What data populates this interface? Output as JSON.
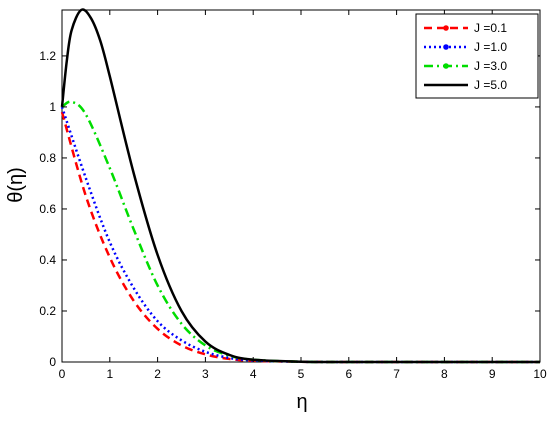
{
  "chart_data": {
    "type": "line",
    "title": "",
    "xlabel": "η",
    "ylabel": "θ(η)",
    "xlim": [
      0,
      10
    ],
    "ylim": [
      0,
      1.38
    ],
    "xticks": [
      "0",
      "1",
      "2",
      "3",
      "4",
      "5",
      "6",
      "7",
      "8",
      "9",
      "10"
    ],
    "yticks": [
      "0",
      "0.2",
      "0.4",
      "0.6",
      "0.8",
      "1",
      "1.2"
    ],
    "grid": false,
    "legend_position": "top-right",
    "series": [
      {
        "name": "J =0.1",
        "color": "#ff0000",
        "style": "dashed",
        "x": [
          0,
          0.5,
          1,
          1.5,
          2,
          2.5,
          3,
          3.5,
          4,
          5,
          6,
          7,
          8,
          9,
          10
        ],
        "y": [
          0.98,
          0.65,
          0.41,
          0.24,
          0.13,
          0.065,
          0.03,
          0.012,
          0.005,
          0.001,
          0,
          0,
          0,
          0,
          0
        ]
      },
      {
        "name": "J =1.0",
        "color": "#0000ff",
        "style": "dotted",
        "x": [
          0,
          0.5,
          1,
          1.5,
          2,
          2.5,
          3,
          3.5,
          4,
          5,
          6,
          7,
          8,
          9,
          10
        ],
        "y": [
          1.0,
          0.72,
          0.47,
          0.29,
          0.16,
          0.085,
          0.04,
          0.016,
          0.006,
          0.001,
          0,
          0,
          0,
          0,
          0
        ]
      },
      {
        "name": "J =3.0",
        "color": "#00dd00",
        "style": "dashdot",
        "x": [
          0,
          0.2,
          0.5,
          1,
          1.5,
          2,
          2.5,
          3,
          3.5,
          4,
          5,
          6,
          7,
          8,
          9,
          10
        ],
        "y": [
          1.0,
          1.02,
          0.97,
          0.76,
          0.52,
          0.3,
          0.15,
          0.065,
          0.025,
          0.009,
          0.001,
          0,
          0,
          0,
          0,
          0
        ]
      },
      {
        "name": "J =5.0",
        "color": "#000000",
        "style": "solid",
        "x": [
          0,
          0.1,
          0.2,
          0.4,
          0.6,
          0.8,
          1,
          1.5,
          2,
          2.5,
          3,
          3.5,
          4,
          5,
          6,
          7,
          8,
          9,
          10
        ],
        "y": [
          1.0,
          1.18,
          1.3,
          1.38,
          1.35,
          1.26,
          1.12,
          0.74,
          0.42,
          0.2,
          0.08,
          0.028,
          0.009,
          0.001,
          0,
          0,
          0,
          0,
          0
        ]
      }
    ]
  }
}
